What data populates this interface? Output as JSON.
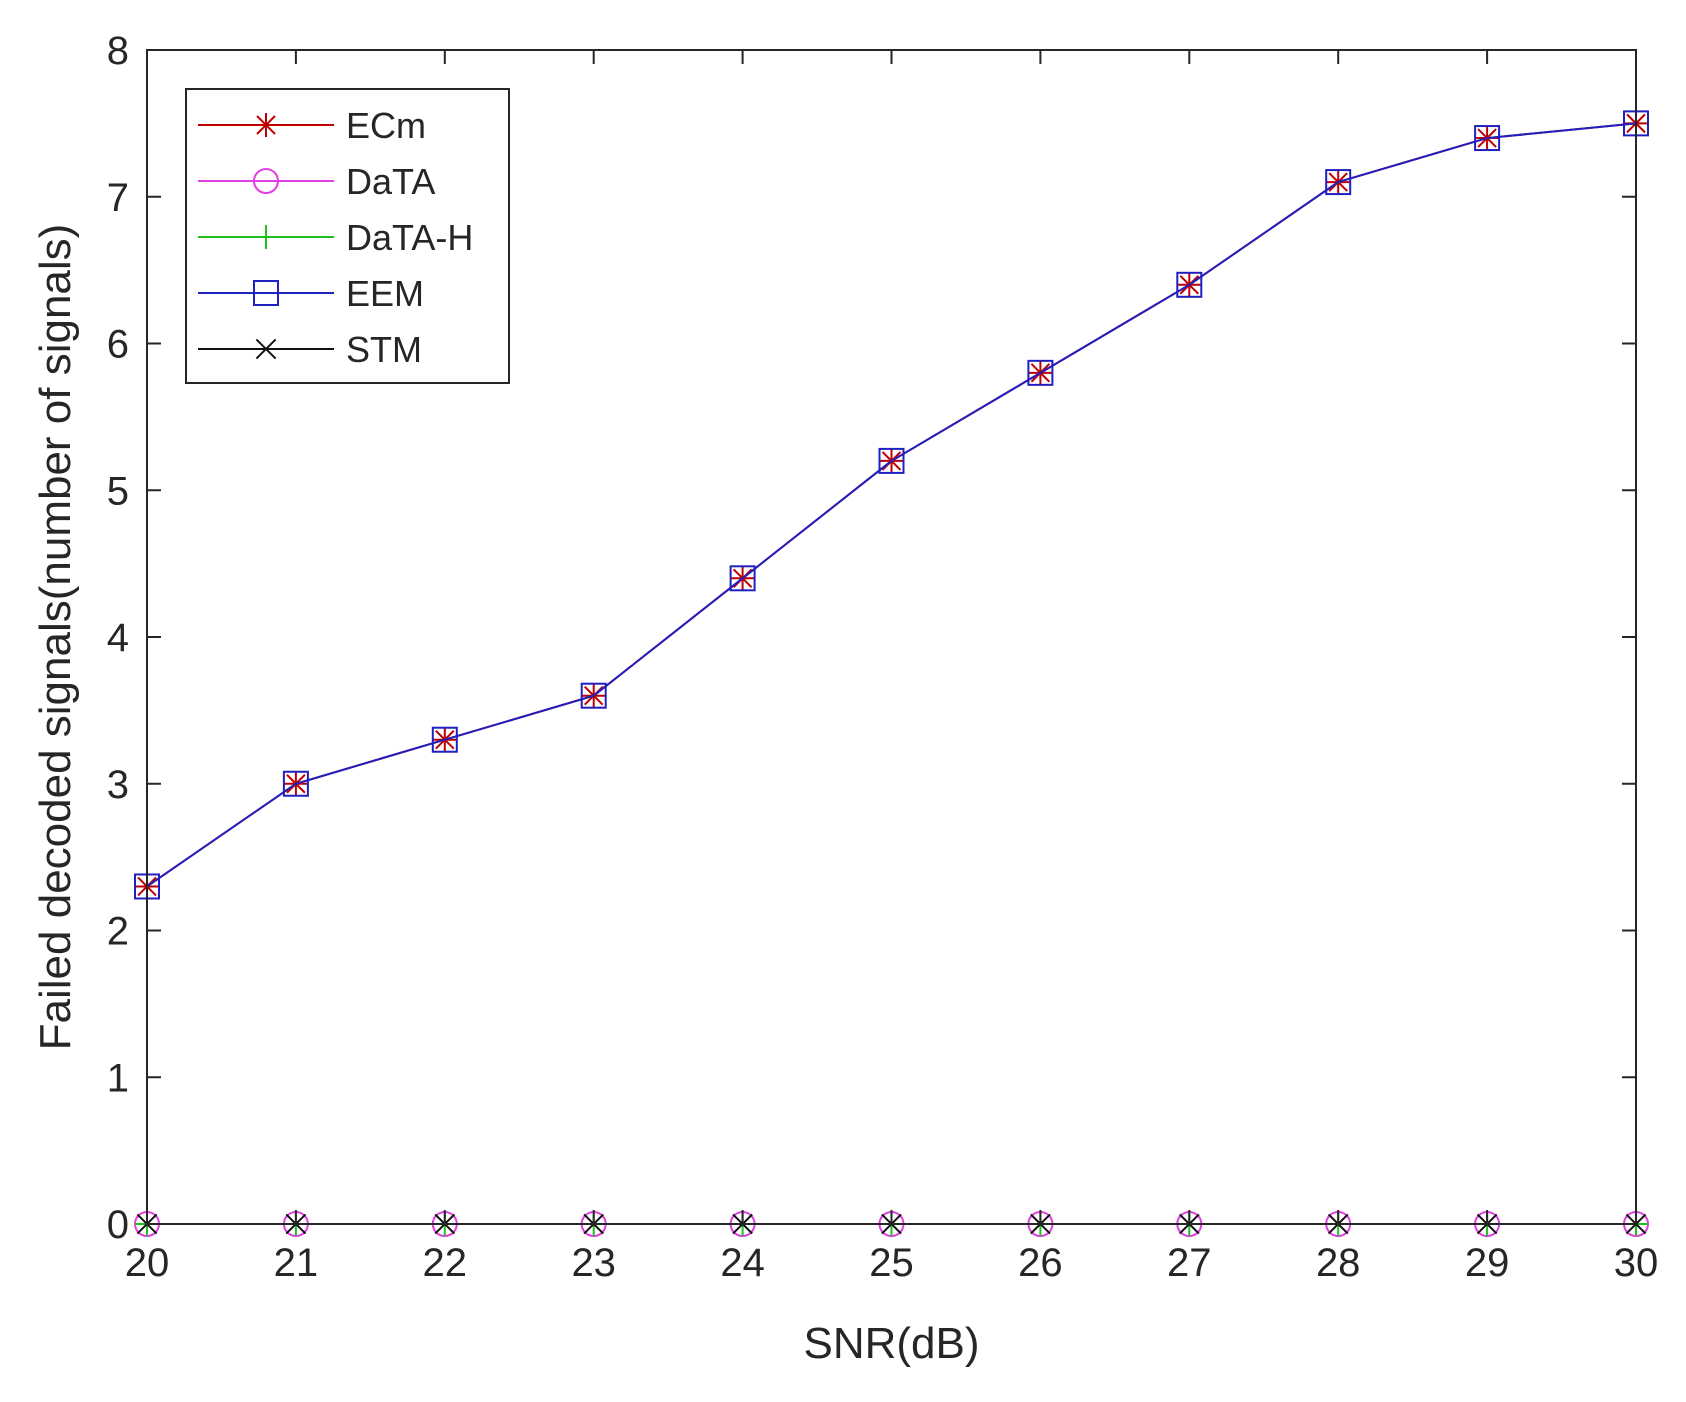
{
  "chart_data": {
    "type": "line",
    "title": "",
    "xlabel": "SNR(dB)",
    "ylabel": "Failed decoded signals(number of signals)",
    "xlim": [
      20,
      30
    ],
    "ylim": [
      0,
      8
    ],
    "xticks": [
      20,
      21,
      22,
      23,
      24,
      25,
      26,
      27,
      28,
      29,
      30
    ],
    "yticks": [
      0,
      1,
      2,
      3,
      4,
      5,
      6,
      7,
      8
    ],
    "grid": false,
    "legend_position": "top-left",
    "x": [
      20,
      21,
      22,
      23,
      24,
      25,
      26,
      27,
      28,
      29,
      30
    ],
    "series": [
      {
        "name": "ECm",
        "marker": "asterisk",
        "color": "#c00000",
        "values": [
          2.3,
          3.0,
          3.3,
          3.6,
          4.4,
          5.2,
          5.8,
          6.4,
          7.1,
          7.4,
          7.5
        ]
      },
      {
        "name": "DaTA",
        "marker": "circle",
        "color": "#e040e0",
        "values": [
          0,
          0,
          0,
          0,
          0,
          0,
          0,
          0,
          0,
          0,
          0
        ]
      },
      {
        "name": "DaTA-H",
        "marker": "plus",
        "color": "#20c020",
        "values": [
          0,
          0,
          0,
          0,
          0,
          0,
          0,
          0,
          0,
          0,
          0
        ]
      },
      {
        "name": "EEM",
        "marker": "square",
        "color": "#2020c0",
        "values": [
          2.3,
          3.0,
          3.3,
          3.6,
          4.4,
          5.2,
          5.8,
          6.4,
          7.1,
          7.4,
          7.5
        ]
      },
      {
        "name": "STM",
        "marker": "x",
        "color": "#101010",
        "values": [
          0,
          0,
          0,
          0,
          0,
          0,
          0,
          0,
          0,
          0,
          0
        ]
      }
    ]
  }
}
